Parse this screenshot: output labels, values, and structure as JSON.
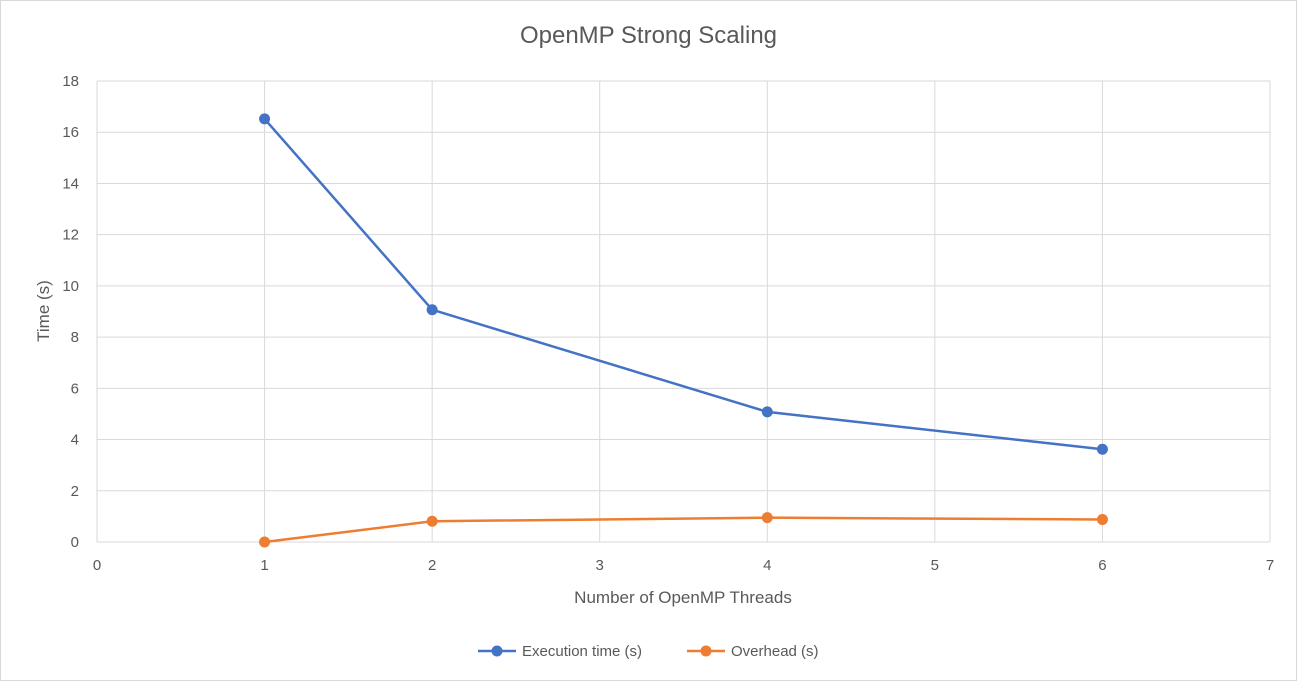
{
  "chart_data": {
    "type": "line",
    "title": "OpenMP Strong Scaling",
    "xlabel": "Number of OpenMP Threads",
    "ylabel": "Time (s)",
    "xlim": [
      0,
      7
    ],
    "ylim": [
      0,
      18
    ],
    "x_ticks": [
      "0",
      "1",
      "2",
      "3",
      "4",
      "5",
      "6",
      "7"
    ],
    "y_ticks": [
      "0",
      "2",
      "4",
      "6",
      "8",
      "10",
      "12",
      "14",
      "16",
      "18"
    ],
    "grid": true,
    "legend_position": "bottom",
    "series": [
      {
        "name": "Execution time (s)",
        "color": "#4472C4",
        "x": [
          1,
          2,
          4,
          6
        ],
        "y": [
          16.52,
          9.07,
          5.08,
          3.62
        ]
      },
      {
        "name": "Overhead (s)",
        "color": "#ED7D31",
        "x": [
          1,
          2,
          4,
          6
        ],
        "y": [
          0.0,
          0.81,
          0.95,
          0.88
        ]
      }
    ]
  }
}
